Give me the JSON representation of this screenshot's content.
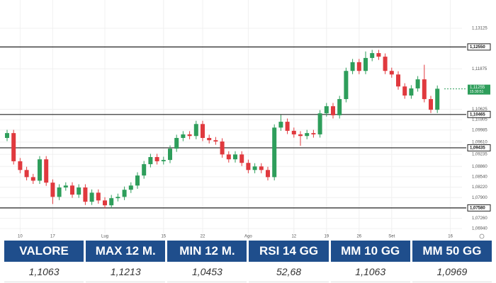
{
  "chart_data": {
    "type": "candlestick",
    "categories": [
      null,
      null,
      "10",
      null,
      null,
      null,
      null,
      "17",
      null,
      null,
      null,
      null,
      null,
      null,
      null,
      "Lug",
      null,
      null,
      null,
      null,
      null,
      null,
      null,
      null,
      "15",
      null,
      null,
      null,
      null,
      null,
      "22",
      null,
      null,
      null,
      null,
      null,
      null,
      "Ago",
      null,
      null,
      null,
      null,
      null,
      null,
      "12",
      null,
      null,
      null,
      null,
      "19",
      null,
      null,
      null,
      null,
      "26",
      null,
      null,
      null,
      null,
      "Set",
      null,
      null,
      null,
      null,
      null,
      null,
      null,
      null,
      "16"
    ],
    "open": [
      1.0974,
      1.0989,
      1.0902,
      1.0875,
      1.0853,
      1.0842,
      1.0908,
      1.0836,
      1.0792,
      1.0821,
      1.0827,
      1.0799,
      1.0821,
      1.0777,
      1.0805,
      1.0781,
      1.0766,
      1.0788,
      1.0792,
      1.0814,
      1.0827,
      1.0858,
      1.0893,
      1.0915,
      1.0902,
      1.0906,
      1.0941,
      1.0974,
      1.0985,
      1.098,
      1.1017,
      1.0974,
      1.0967,
      1.0963,
      1.0923,
      1.0908,
      1.0923,
      1.0897,
      1.0875,
      1.0886,
      1.0875,
      1.0853,
      1.1006,
      1.1024,
      1.0996,
      1.0985,
      1.098,
      1.0989,
      1.0985,
      1.105,
      1.1072,
      1.1044,
      1.1094,
      1.1181,
      1.1208,
      1.1181,
      1.1221,
      1.1236,
      1.1225,
      1.1181,
      1.117,
      1.1133,
      1.1105,
      1.1127,
      1.1155,
      1.1094,
      1.1061,
      null,
      null
    ],
    "high": [
      1.0999,
      1.0999,
      1.0912,
      1.0885,
      1.0863,
      1.0918,
      1.0918,
      1.0846,
      1.0831,
      1.0837,
      1.0837,
      1.0831,
      1.0831,
      1.0815,
      1.0815,
      1.0791,
      1.0798,
      1.0802,
      1.0824,
      1.0837,
      1.0868,
      1.0903,
      1.0925,
      1.0925,
      1.0916,
      1.0951,
      1.0984,
      1.0995,
      1.0995,
      1.1027,
      1.1027,
      1.0984,
      1.0977,
      1.0973,
      1.0933,
      1.0933,
      1.0933,
      1.0907,
      1.0896,
      1.0896,
      1.0885,
      1.1016,
      1.1045,
      1.1034,
      1.1006,
      1.0995,
      1.0999,
      1.0999,
      1.106,
      1.1082,
      1.1082,
      1.1104,
      1.1191,
      1.1218,
      1.1218,
      1.1241,
      1.1246,
      1.1246,
      1.1235,
      1.1191,
      1.118,
      1.1143,
      1.1137,
      1.1165,
      1.12,
      1.1104,
      1.1136,
      null,
      null
    ],
    "low": [
      1.0964,
      1.0892,
      1.0865,
      1.0843,
      1.0832,
      1.0832,
      1.0826,
      1.077,
      1.0782,
      1.0811,
      1.0789,
      1.0789,
      1.0767,
      1.0767,
      1.0771,
      1.0756,
      1.0756,
      1.0778,
      1.0782,
      1.0804,
      1.0817,
      1.0848,
      1.0883,
      1.0892,
      1.0892,
      1.0896,
      1.0931,
      1.0964,
      1.097,
      1.097,
      1.0964,
      1.0957,
      1.0953,
      1.0913,
      1.0898,
      1.0898,
      1.0887,
      1.0865,
      1.0865,
      1.0865,
      1.0843,
      1.0843,
      1.0996,
      1.0986,
      1.0975,
      1.095,
      1.097,
      1.0975,
      1.0975,
      1.104,
      1.1034,
      1.1034,
      1.1084,
      1.1171,
      1.1171,
      1.1171,
      1.1211,
      1.1215,
      1.1171,
      1.116,
      1.1123,
      1.1095,
      1.1095,
      1.1117,
      1.1084,
      1.1051,
      1.1051,
      null,
      null
    ],
    "close": [
      1.0989,
      1.0902,
      1.0875,
      1.0853,
      1.0842,
      1.0908,
      1.0836,
      1.0792,
      1.0821,
      1.0827,
      1.0799,
      1.0821,
      1.0777,
      1.0805,
      1.0781,
      1.0766,
      1.0788,
      1.0792,
      1.0814,
      1.0827,
      1.0858,
      1.0893,
      1.0915,
      1.0902,
      1.0906,
      1.0941,
      1.0974,
      1.0985,
      1.098,
      1.1017,
      1.0974,
      1.0967,
      1.0963,
      1.0923,
      1.0908,
      1.0923,
      1.0897,
      1.0875,
      1.0886,
      1.0875,
      1.0853,
      1.1006,
      1.1024,
      1.0996,
      1.0985,
      1.098,
      1.0989,
      1.0985,
      1.105,
      1.1072,
      1.1044,
      1.1094,
      1.1181,
      1.1208,
      1.1181,
      1.1221,
      1.1236,
      1.1225,
      1.1181,
      1.117,
      1.1133,
      1.1105,
      1.1127,
      1.1155,
      1.1094,
      1.1061,
      1.1126,
      null,
      null
    ],
    "up_color": "#2e9e5b",
    "down_color": "#e0393e",
    "ylim": [
      1.0679,
      1.14
    ],
    "yticks": [
      {
        "value": 1.13125,
        "label": "1,13125"
      },
      {
        "value": 1.11875,
        "label": "1,11875"
      },
      {
        "value": 1.10625,
        "label": "1,10625"
      },
      {
        "value": 1.10305,
        "label": "1,10305"
      },
      {
        "value": 1.09985,
        "label": "1,09985"
      },
      {
        "value": 1.0961,
        "label": "1,09610"
      },
      {
        "value": 1.09235,
        "label": "1,09235"
      },
      {
        "value": 1.0886,
        "label": "1,08860"
      },
      {
        "value": 1.0854,
        "label": "1,08540"
      },
      {
        "value": 1.0822,
        "label": "1,08220"
      },
      {
        "value": 1.079,
        "label": "1,07900"
      },
      {
        "value": 1.0726,
        "label": "1,07260"
      },
      {
        "value": 1.0694,
        "label": "1,06940"
      }
    ],
    "levels": [
      {
        "value": 1.1255,
        "label": "1,12550"
      },
      {
        "value": 1.10465,
        "label": "1,10465"
      },
      {
        "value": 1.09435,
        "label": "1,09435"
      },
      {
        "value": 1.0758,
        "label": "1,07580"
      }
    ],
    "last_price": {
      "value": 1.11255,
      "label": "1,11255",
      "time": "15:30:51"
    },
    "grid": true
  },
  "table": {
    "headers": [
      "VALORE",
      "MAX 12 M.",
      "MIN 12 M.",
      "RSI 14 GG",
      "MM 10 GG",
      "MM 50 GG"
    ],
    "rows": [
      [
        "1,1063",
        "1,1213",
        "1,0453",
        "52,68",
        "1,1063",
        "1,0969"
      ]
    ]
  }
}
